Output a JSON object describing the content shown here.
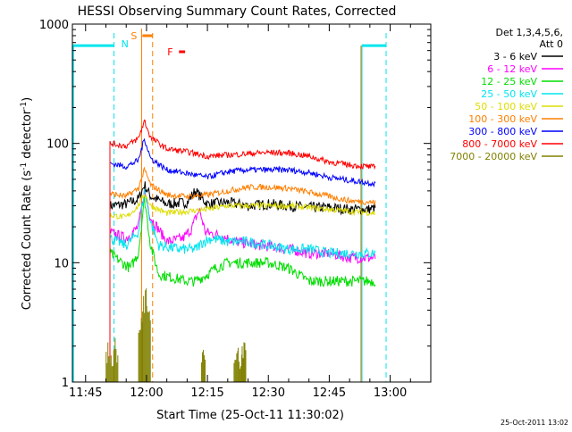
{
  "chart_data": {
    "type": "line",
    "title": "HESSI Observing Summary Count Rates, Corrected",
    "xlabel": "Start Time (25-Oct-11 11:30:02)",
    "ylabel_main": "Corrected Count Rate (s",
    "ylabel_sup1": "-1",
    "ylabel_mid": " detector",
    "ylabel_sup2": "-1",
    "ylabel_end": ")",
    "yscale": "log",
    "ylim": [
      1,
      1000
    ],
    "xlim_minutes": [
      11.75,
      100.0
    ],
    "x_ticks": [
      {
        "m": 15,
        "label": "11:45"
      },
      {
        "m": 30,
        "label": "12:00"
      },
      {
        "m": 45,
        "label": "12:15"
      },
      {
        "m": 60,
        "label": "12:30"
      },
      {
        "m": 75,
        "label": "12:45"
      },
      {
        "m": 90,
        "label": "13:00"
      }
    ],
    "y_ticks": [
      {
        "v": 1,
        "label": "1"
      },
      {
        "v": 10,
        "label": "10"
      },
      {
        "v": 100,
        "label": "100"
      },
      {
        "v": 1000,
        "label": "1000"
      }
    ],
    "legend_header": [
      "Det 1,3,4,5,6,",
      "Att 0"
    ],
    "legend_position": "right",
    "series": [
      {
        "name": "3 - 6 keV",
        "color": "#000000",
        "points": [
          [
            21,
            30
          ],
          [
            25,
            31
          ],
          [
            28,
            34
          ],
          [
            29.5,
            45
          ],
          [
            31,
            36
          ],
          [
            35,
            31
          ],
          [
            40,
            32
          ],
          [
            42,
            40
          ],
          [
            45,
            31
          ],
          [
            50,
            32
          ],
          [
            55,
            30
          ],
          [
            60,
            31
          ],
          [
            65,
            30
          ],
          [
            70,
            29
          ],
          [
            75,
            29
          ],
          [
            80,
            28
          ],
          [
            85,
            28
          ],
          [
            86.5,
            29
          ]
        ]
      },
      {
        "name": "6 - 12 keV",
        "color": "#ff00ff",
        "points": [
          [
            21,
            18
          ],
          [
            25,
            16
          ],
          [
            28,
            20
          ],
          [
            29.5,
            40
          ],
          [
            31,
            24
          ],
          [
            35,
            15
          ],
          [
            39,
            16
          ],
          [
            41,
            19
          ],
          [
            43,
            28
          ],
          [
            44.5,
            18
          ],
          [
            48,
            17
          ],
          [
            52,
            15
          ],
          [
            58,
            14
          ],
          [
            65,
            13
          ],
          [
            70,
            12
          ],
          [
            75,
            12
          ],
          [
            80,
            11
          ],
          [
            86.5,
            11
          ]
        ]
      },
      {
        "name": "12 - 25 keV",
        "color": "#00dd00",
        "points": [
          [
            21,
            12
          ],
          [
            24,
            10
          ],
          [
            26,
            9
          ],
          [
            28,
            12
          ],
          [
            29.5,
            35
          ],
          [
            31,
            14
          ],
          [
            33,
            8
          ],
          [
            40,
            7
          ],
          [
            42,
            7
          ],
          [
            45,
            8
          ],
          [
            47,
            9
          ],
          [
            50,
            10
          ],
          [
            55,
            10
          ],
          [
            60,
            10
          ],
          [
            65,
            9
          ],
          [
            70,
            7
          ],
          [
            75,
            7
          ],
          [
            80,
            7
          ],
          [
            86.5,
            7
          ]
        ]
      },
      {
        "name": "25 - 50 keV",
        "color": "#00e5ee",
        "points": [
          [
            21,
            16
          ],
          [
            25,
            14
          ],
          [
            28,
            18
          ],
          [
            29.5,
            40
          ],
          [
            31,
            22
          ],
          [
            33,
            14
          ],
          [
            38,
            13
          ],
          [
            42,
            13
          ],
          [
            44,
            15
          ],
          [
            46,
            16
          ],
          [
            50,
            15
          ],
          [
            55,
            15
          ],
          [
            60,
            14
          ],
          [
            65,
            13
          ],
          [
            70,
            13
          ],
          [
            75,
            12
          ],
          [
            80,
            12
          ],
          [
            86.5,
            12
          ]
        ]
      },
      {
        "name": "50 - 100 keV",
        "color": "#dddd00",
        "points": [
          [
            21,
            25
          ],
          [
            25,
            24
          ],
          [
            28,
            30
          ],
          [
            29.5,
            38
          ],
          [
            31,
            30
          ],
          [
            35,
            26
          ],
          [
            40,
            27
          ],
          [
            45,
            28
          ],
          [
            50,
            30
          ],
          [
            55,
            30
          ],
          [
            60,
            30
          ],
          [
            65,
            30
          ],
          [
            70,
            29
          ],
          [
            75,
            28
          ],
          [
            80,
            27
          ],
          [
            86.5,
            26
          ]
        ]
      },
      {
        "name": "100 - 300 keV",
        "color": "#ff7f00",
        "points": [
          [
            21,
            38
          ],
          [
            25,
            36
          ],
          [
            28,
            42
          ],
          [
            29.5,
            60
          ],
          [
            31,
            45
          ],
          [
            35,
            37
          ],
          [
            40,
            36
          ],
          [
            45,
            37
          ],
          [
            50,
            40
          ],
          [
            55,
            43
          ],
          [
            60,
            43
          ],
          [
            65,
            42
          ],
          [
            70,
            39
          ],
          [
            75,
            36
          ],
          [
            80,
            33
          ],
          [
            86.5,
            32
          ]
        ]
      },
      {
        "name": "300 - 800 keV",
        "color": "#0000ff",
        "points": [
          [
            21,
            68
          ],
          [
            25,
            64
          ],
          [
            28,
            72
          ],
          [
            29.5,
            110
          ],
          [
            31,
            75
          ],
          [
            35,
            60
          ],
          [
            40,
            56
          ],
          [
            45,
            52
          ],
          [
            50,
            58
          ],
          [
            55,
            60
          ],
          [
            60,
            60
          ],
          [
            65,
            60
          ],
          [
            70,
            57
          ],
          [
            75,
            52
          ],
          [
            80,
            49
          ],
          [
            86.5,
            46
          ]
        ]
      },
      {
        "name": "800 - 7000 keV",
        "color": "#ff0000",
        "points": [
          [
            21,
            100
          ],
          [
            25,
            95
          ],
          [
            28,
            110
          ],
          [
            29.5,
            155
          ],
          [
            31,
            112
          ],
          [
            35,
            90
          ],
          [
            40,
            85
          ],
          [
            45,
            78
          ],
          [
            50,
            80
          ],
          [
            55,
            82
          ],
          [
            60,
            84
          ],
          [
            65,
            83
          ],
          [
            70,
            78
          ],
          [
            75,
            70
          ],
          [
            80,
            66
          ],
          [
            86.5,
            63
          ]
        ]
      },
      {
        "name": "7000 - 20000 keV",
        "color": "#808000",
        "points": [
          [
            20.5,
            1.9
          ],
          [
            21.5,
            1.5
          ],
          [
            22.5,
            1.9
          ],
          [
            28.5,
            3.0
          ],
          [
            29.5,
            5.0
          ],
          [
            30.5,
            3.5
          ],
          [
            44,
            1.8
          ],
          [
            52,
            1.9
          ],
          [
            53,
            1.6
          ],
          [
            54,
            1.9
          ]
        ]
      }
    ],
    "flags": [
      {
        "label": "N",
        "color": "#00e5ee",
        "y_level": 660,
        "spans": [
          [
            11.75,
            22
          ],
          [
            83,
            89
          ]
        ]
      },
      {
        "label": "S",
        "color": "#ff7f00",
        "marker_minutes": [
          29,
          31.5
        ]
      },
      {
        "label": "F",
        "color": "#ff0000",
        "marker_minutes": [
          38,
          39.5
        ]
      }
    ],
    "attenuator_dashed_minutes": [
      22,
      31.5,
      89
    ],
    "saa_solid_minutes": [
      28.8,
      82.8
    ]
  },
  "footer_date": "25-Oct-2011 13:02"
}
